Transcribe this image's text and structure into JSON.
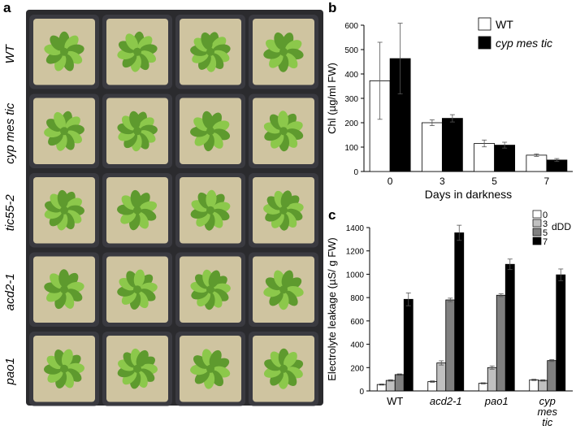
{
  "panel_a": {
    "letter": "a",
    "row_labels": [
      "WT",
      "cyp mes tic",
      "tic55-2",
      "acd2-1",
      "pao1"
    ],
    "columns": 4,
    "colors": {
      "tray": "#2b2b2e",
      "pot": "#3a3a40",
      "soil": "#cfc4a0",
      "leaf": "#8cc84b",
      "leaf_dark": "#5e9a2e"
    }
  },
  "chart_data": [
    {
      "panel": "b",
      "type": "bar",
      "ylabel": "Chl (µg/ml FW)",
      "xlabel": "Days in darkness",
      "categories": [
        "0",
        "3",
        "5",
        "7"
      ],
      "ylim": [
        0,
        600
      ],
      "yticks": [
        0,
        100,
        200,
        300,
        400,
        500,
        600
      ],
      "series": [
        {
          "name": "WT",
          "color": "#ffffff",
          "values": [
            372,
            200,
            115,
            67
          ],
          "errors": [
            158,
            12,
            14,
            5
          ]
        },
        {
          "name": "cyp mes tic",
          "color": "#000000",
          "values": [
            463,
            218,
            108,
            47
          ],
          "errors": [
            145,
            15,
            12,
            6
          ]
        }
      ],
      "legend": "top-right",
      "grid": false
    },
    {
      "panel": "c",
      "type": "bar",
      "ylabel": "Electrolyte leakage (µS/ g FW)",
      "categories": [
        [
          "WT"
        ],
        [
          "acd2-1"
        ],
        [
          "pao1"
        ],
        [
          "cyp",
          "mes",
          "tic"
        ]
      ],
      "ylim": [
        0,
        1400
      ],
      "yticks": [
        0,
        200,
        400,
        600,
        800,
        1000,
        1200,
        1400
      ],
      "legend_unit": "dDD",
      "series": [
        {
          "name": "0",
          "color": "#ffffff",
          "values": [
            55,
            80,
            65,
            95
          ],
          "errors": [
            5,
            6,
            5,
            6
          ]
        },
        {
          "name": "3",
          "color": "#c0c0c0",
          "values": [
            90,
            240,
            200,
            90
          ],
          "errors": [
            6,
            18,
            14,
            6
          ]
        },
        {
          "name": "5",
          "color": "#808080",
          "values": [
            140,
            780,
            820,
            260
          ],
          "errors": [
            6,
            15,
            12,
            8
          ]
        },
        {
          "name": "7",
          "color": "#000000",
          "values": [
            785,
            1355,
            1085,
            995
          ],
          "errors": [
            55,
            65,
            45,
            50
          ]
        }
      ],
      "legend": "top-right",
      "grid": false
    }
  ]
}
